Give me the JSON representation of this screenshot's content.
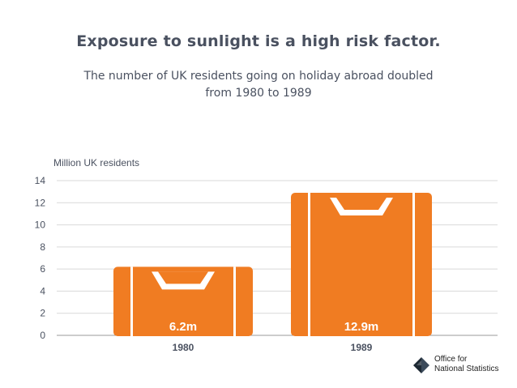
{
  "title": "Exposure to sunlight is a high risk factor.",
  "subtitle": "The number of UK residents going on holiday abroad doubled from 1980 to 1989",
  "logo": {
    "line1": "Office for",
    "line2": "National Statistics",
    "icon": "ons-logo-icon"
  },
  "colors": {
    "bar": "#f07c22",
    "text": "#4a5160",
    "grid": "#d9d9d9",
    "label": "#ffffff"
  },
  "chart_data": {
    "type": "bar",
    "style": "suitcase icons",
    "categories": [
      "1980",
      "1989"
    ],
    "values": [
      6.2,
      12.9
    ],
    "data_labels": [
      "6.2m",
      "12.9m"
    ],
    "ylabel": "Million UK residents",
    "xlabel": "",
    "ylim": [
      0,
      14
    ],
    "yticks": [
      0,
      2,
      4,
      6,
      8,
      10,
      12,
      14
    ],
    "grid": true
  }
}
